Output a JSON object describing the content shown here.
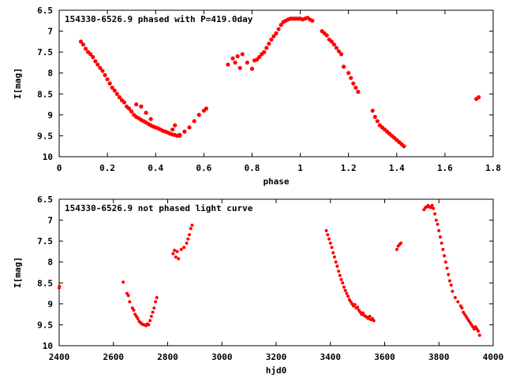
{
  "chart_data": [
    {
      "type": "scatter",
      "title": "154330-6526.9 phased with P=419.0day",
      "xlabel": "phase",
      "ylabel": "I[mag]",
      "xlim": [
        0,
        1.8
      ],
      "ylim": [
        10,
        6.5
      ],
      "y_inverted": true,
      "xticks": [
        "0",
        "0.2",
        "0.4",
        "0.6",
        "0.8",
        "1",
        "1.2",
        "1.4",
        "1.6",
        "1.8"
      ],
      "yticks": [
        "6.5",
        "7",
        "7.5",
        "8",
        "8.5",
        "9",
        "9.5",
        "10"
      ],
      "marker_color": "#ff0000",
      "series": [
        {
          "x": [
            0.09,
            0.1,
            0.11,
            0.12,
            0.13,
            0.14,
            0.15,
            0.16,
            0.17,
            0.18,
            0.19,
            0.2,
            0.21,
            0.22,
            0.23,
            0.24,
            0.25,
            0.26,
            0.27,
            0.28,
            0.29,
            0.3,
            0.31,
            0.32,
            0.33,
            0.34,
            0.35,
            0.36,
            0.37,
            0.38,
            0.39,
            0.4,
            0.41,
            0.42,
            0.43,
            0.44,
            0.45,
            0.46,
            0.47,
            0.48,
            0.49,
            0.5,
            0.52,
            0.54,
            0.56,
            0.58,
            0.6,
            0.61,
            0.32,
            0.34,
            0.36,
            0.38,
            0.47,
            0.48,
            0.5,
            0.7,
            0.72,
            0.73,
            0.74,
            0.75,
            0.76,
            0.78,
            0.8,
            0.81,
            0.82,
            0.83,
            0.84,
            0.85,
            0.86,
            0.87,
            0.88,
            0.89,
            0.9,
            0.91,
            0.92,
            0.93,
            0.94,
            0.95,
            0.96,
            0.97,
            0.98,
            0.99,
            1.0,
            1.01,
            1.02,
            1.03,
            1.04,
            1.05,
            1.09,
            1.1,
            1.11,
            1.12,
            1.13,
            1.14,
            1.15,
            1.16,
            1.17,
            1.18,
            1.2,
            1.21,
            1.22,
            1.23,
            1.24,
            1.3,
            1.31,
            1.32,
            1.33,
            1.34,
            1.35,
            1.36,
            1.37,
            1.38,
            1.39,
            1.4,
            1.41,
            1.42,
            1.43,
            1.73,
            1.74
          ],
          "y": [
            7.25,
            7.32,
            7.42,
            7.5,
            7.55,
            7.62,
            7.72,
            7.8,
            7.88,
            7.95,
            8.05,
            8.15,
            8.25,
            8.35,
            8.42,
            8.5,
            8.58,
            8.65,
            8.7,
            8.8,
            8.85,
            8.92,
            9.0,
            9.05,
            9.08,
            9.12,
            9.15,
            9.18,
            9.22,
            9.25,
            9.28,
            9.3,
            9.32,
            9.35,
            9.38,
            9.4,
            9.42,
            9.45,
            9.47,
            9.48,
            9.5,
            9.48,
            9.4,
            9.3,
            9.15,
            9.0,
            8.9,
            8.85,
            8.75,
            8.8,
            8.95,
            9.1,
            9.35,
            9.25,
            9.5,
            7.8,
            7.65,
            7.75,
            7.6,
            7.88,
            7.55,
            7.75,
            7.9,
            7.7,
            7.68,
            7.62,
            7.55,
            7.5,
            7.4,
            7.3,
            7.2,
            7.12,
            7.05,
            6.95,
            6.85,
            6.78,
            6.75,
            6.72,
            6.7,
            6.7,
            6.7,
            6.7,
            6.7,
            6.72,
            6.7,
            6.68,
            6.72,
            6.75,
            7.0,
            7.05,
            7.1,
            7.2,
            7.25,
            7.32,
            7.4,
            7.48,
            7.55,
            7.85,
            8.0,
            8.12,
            8.25,
            8.35,
            8.45,
            8.9,
            9.05,
            9.15,
            9.25,
            9.3,
            9.35,
            9.4,
            9.45,
            9.5,
            9.55,
            9.6,
            9.65,
            9.7,
            9.75,
            8.62,
            8.58
          ]
        }
      ]
    },
    {
      "type": "scatter",
      "title": "154330-6526.9 not phased light curve",
      "xlabel": "hjd0",
      "ylabel": "I[mag]",
      "xlim": [
        2400,
        4000
      ],
      "ylim": [
        10,
        6.5
      ],
      "y_inverted": true,
      "xticks": [
        "2400",
        "2600",
        "2800",
        "3000",
        "3200",
        "3400",
        "3600",
        "3800",
        "4000"
      ],
      "yticks": [
        "6.5",
        "7",
        "7.5",
        "8",
        "8.5",
        "9",
        "9.5",
        "10"
      ],
      "marker_color": "#ff0000",
      "series": [
        {
          "x": [
            2400,
            2401,
            2636,
            2650,
            2655,
            2660,
            2670,
            2675,
            2680,
            2685,
            2690,
            2695,
            2700,
            2705,
            2710,
            2715,
            2720,
            2725,
            2730,
            2735,
            2740,
            2745,
            2750,
            2755,
            2760,
            2820,
            2825,
            2830,
            2835,
            2840,
            2850,
            2860,
            2870,
            2875,
            2880,
            2885,
            2890,
            3385,
            3390,
            3395,
            3400,
            3405,
            3410,
            3415,
            3420,
            3425,
            3430,
            3435,
            3440,
            3445,
            3450,
            3455,
            3460,
            3465,
            3470,
            3475,
            3480,
            3485,
            3490,
            3495,
            3500,
            3505,
            3510,
            3515,
            3520,
            3525,
            3530,
            3535,
            3540,
            3545,
            3550,
            3555,
            3560,
            3645,
            3650,
            3655,
            3660,
            3745,
            3750,
            3755,
            3760,
            3765,
            3770,
            3775,
            3780,
            3785,
            3790,
            3795,
            3800,
            3805,
            3810,
            3815,
            3820,
            3825,
            3830,
            3835,
            3840,
            3845,
            3850,
            3860,
            3870,
            3880,
            3885,
            3890,
            3895,
            3900,
            3905,
            3910,
            3915,
            3920,
            3925,
            3930,
            3935,
            3940,
            3945,
            3950
          ],
          "y": [
            8.62,
            8.58,
            8.48,
            8.75,
            8.8,
            8.95,
            9.1,
            9.15,
            9.25,
            9.3,
            9.35,
            9.42,
            9.45,
            9.48,
            9.5,
            9.5,
            9.52,
            9.48,
            9.5,
            9.4,
            9.3,
            9.2,
            9.1,
            8.95,
            8.85,
            7.8,
            7.72,
            7.88,
            7.75,
            7.92,
            7.7,
            7.65,
            7.55,
            7.45,
            7.35,
            7.2,
            7.12,
            7.25,
            7.35,
            7.45,
            7.55,
            7.65,
            7.78,
            7.88,
            8.0,
            8.1,
            8.22,
            8.32,
            8.42,
            8.5,
            8.6,
            8.68,
            8.75,
            8.82,
            8.9,
            8.95,
            9.0,
            9.05,
            9.02,
            9.1,
            9.08,
            9.15,
            9.2,
            9.25,
            9.22,
            9.28,
            9.3,
            9.32,
            9.35,
            9.3,
            9.38,
            9.35,
            9.4,
            7.7,
            7.62,
            7.58,
            7.55,
            6.75,
            6.7,
            6.68,
            6.65,
            6.68,
            6.7,
            6.65,
            6.72,
            6.85,
            7.0,
            7.1,
            7.25,
            7.4,
            7.55,
            7.7,
            7.85,
            8.0,
            8.15,
            8.3,
            8.45,
            8.55,
            8.7,
            8.85,
            8.95,
            9.05,
            9.1,
            9.2,
            9.25,
            9.3,
            9.35,
            9.4,
            9.45,
            9.5,
            9.55,
            9.6,
            9.55,
            9.6,
            9.65,
            9.75
          ]
        }
      ]
    }
  ]
}
